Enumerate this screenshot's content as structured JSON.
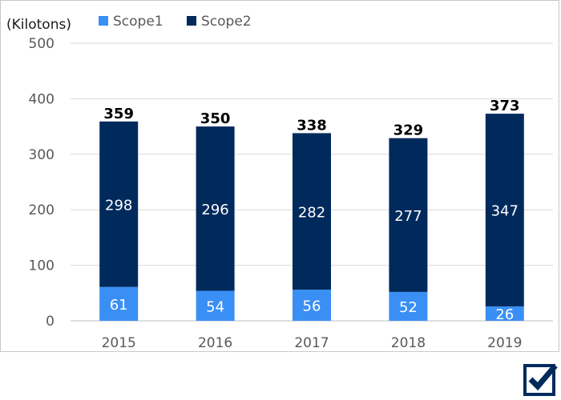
{
  "chart_data": {
    "type": "bar",
    "stacked": true,
    "unit_label": "(Kilotons)",
    "categories": [
      "2015",
      "2016",
      "2017",
      "2018",
      "2019"
    ],
    "series": [
      {
        "name": "Scope1",
        "values": [
          61,
          54,
          56,
          52,
          26
        ],
        "color": "#3a8ff5"
      },
      {
        "name": "Scope2",
        "values": [
          298,
          296,
          282,
          277,
          347
        ],
        "color": "#002a5c"
      }
    ],
    "totals": [
      359,
      350,
      338,
      329,
      373
    ],
    "ylim": [
      0,
      500
    ],
    "yticks": [
      0,
      100,
      200,
      300,
      400,
      500
    ],
    "grid": true,
    "legend_position": "top"
  },
  "icons": {
    "badge": "checkbox-checked-icon"
  }
}
